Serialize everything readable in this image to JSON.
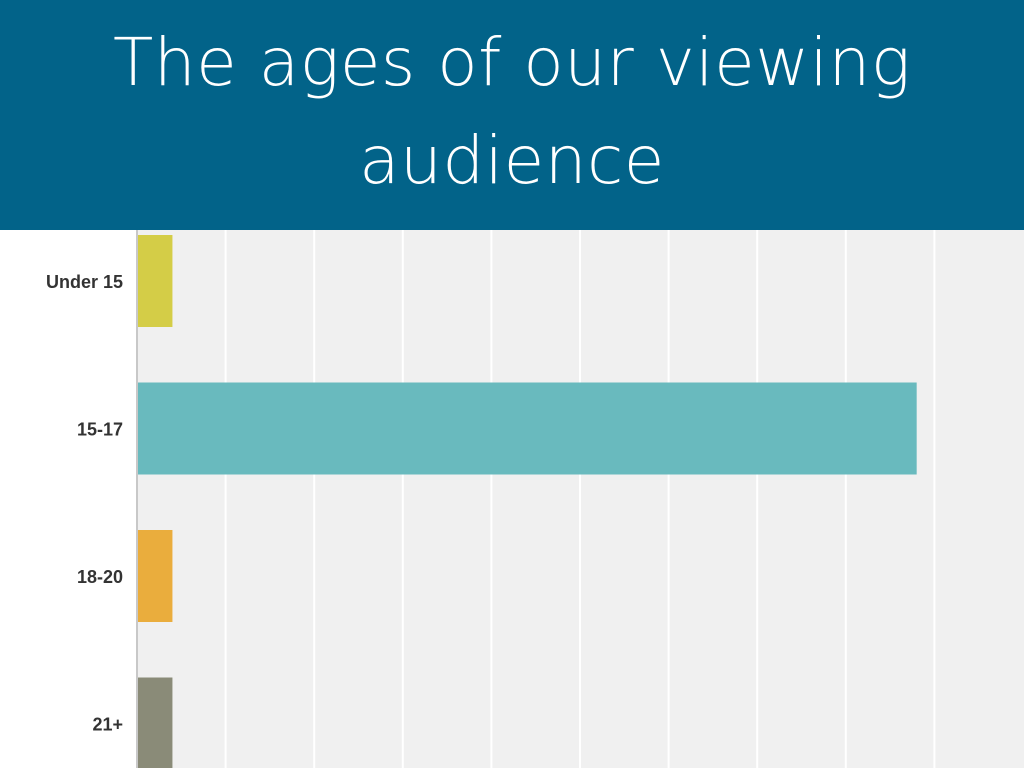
{
  "header": {
    "title": "The ages of our viewing audience",
    "background_color": "#026389",
    "text_color": "#ffffff"
  },
  "chart_data": {
    "type": "bar",
    "orientation": "horizontal",
    "title": "The ages of our viewing audience",
    "categories": [
      "Under 15",
      "15-17",
      "18-20",
      "21+"
    ],
    "values": [
      4,
      88,
      4,
      4
    ],
    "value_unit": "%",
    "xlim": [
      0,
      100
    ],
    "grid": true,
    "legend": "none",
    "bar_colors": [
      "#d4cd47",
      "#69babe",
      "#eaad3d",
      "#8a8b78"
    ],
    "plot_background": "#f0f0f0",
    "gridline_color": "#ffffff"
  }
}
